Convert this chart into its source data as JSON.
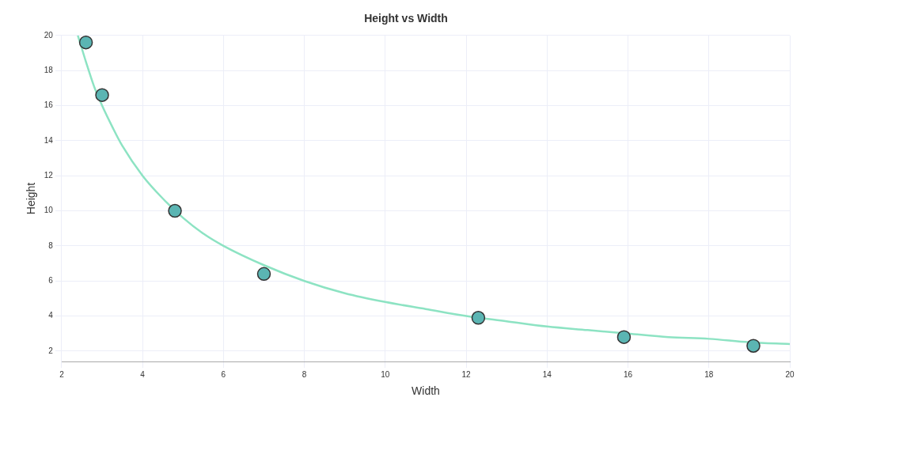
{
  "chart_data": {
    "type": "scatter",
    "title": "Height vs Width",
    "xlabel": "Width",
    "ylabel": "Height",
    "xlim": [
      2,
      20
    ],
    "xticks": [
      2,
      4,
      6,
      8,
      10,
      12,
      14,
      16,
      18,
      20
    ],
    "ylim": [
      1.4,
      20
    ],
    "yticks": [
      2,
      4,
      6,
      8,
      10,
      12,
      14,
      16,
      18,
      20
    ],
    "grid": true,
    "legend": false,
    "series": [
      {
        "color": "#5bb5b3",
        "marker": "circle",
        "x": [
          2.6,
          3.0,
          4.8,
          7.0,
          12.3,
          15.9,
          19.1
        ],
        "values": [
          19.6,
          16.6,
          10.0,
          6.4,
          3.9,
          2.8,
          2.3
        ]
      },
      {
        "type": "line",
        "color": "#8de3c3",
        "marker": "none",
        "line_style": "solid",
        "x": [
          2.4,
          2.6,
          2.8,
          3,
          3.25,
          3.5,
          4,
          4.5,
          5,
          5.5,
          6,
          7,
          8,
          9,
          10,
          11,
          12,
          13,
          14,
          15,
          16,
          17,
          18,
          19,
          20
        ],
        "values": [
          20,
          18.5,
          17.1,
          16,
          14.8,
          13.7,
          12,
          10.7,
          9.6,
          8.7,
          8,
          6.9,
          6,
          5.3,
          4.8,
          4.4,
          4,
          3.7,
          3.4,
          3.2,
          3,
          2.8,
          2.7,
          2.5,
          2.4
        ]
      }
    ]
  }
}
